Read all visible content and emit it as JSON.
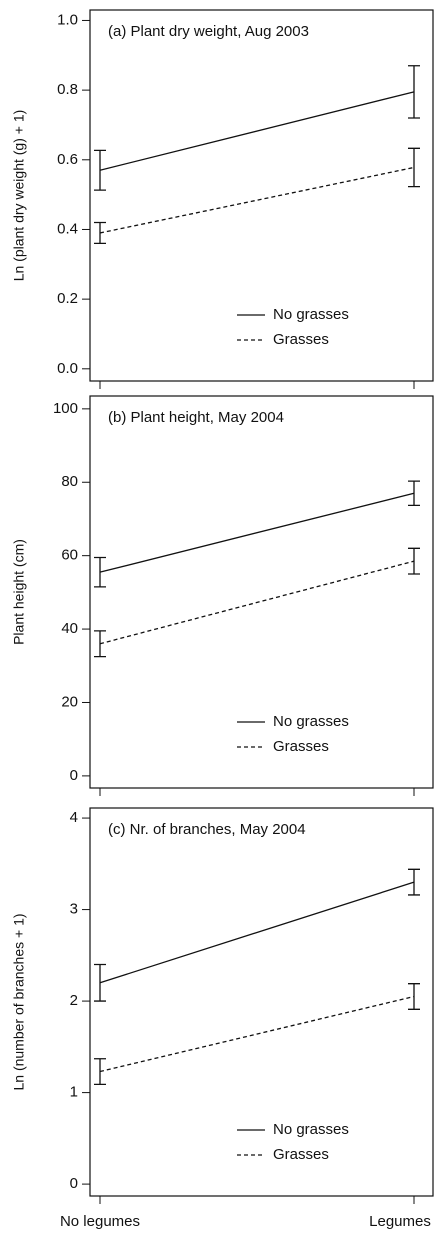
{
  "chart_data": [
    {
      "type": "line",
      "title": "(a) Plant dry weight, Aug 2003",
      "ylabel": "Ln (plant dry weight (g) + 1)",
      "ylim": [
        -0.035,
        1.03
      ],
      "yticks": [
        {
          "value": 0,
          "label": "0.0"
        },
        0.2,
        0.4,
        0.6,
        0.8,
        {
          "value": 1,
          "label": "1.0"
        }
      ],
      "series": [
        {
          "name": "No grasses",
          "color": "#111111",
          "dash": "none",
          "values": [
            0.57,
            0.795
          ],
          "errors": [
            0.057,
            0.075
          ]
        },
        {
          "name": "Grasses",
          "color": "#111111",
          "dash": "4 3",
          "values": [
            0.39,
            0.578
          ],
          "errors": [
            0.03,
            0.055
          ]
        }
      ]
    },
    {
      "type": "line",
      "title": "(b) Plant height, May 2004",
      "ylabel": "Plant height (cm)",
      "ylim": [
        -3.3,
        103.5
      ],
      "yticks": [
        0,
        20,
        40,
        60,
        80,
        100
      ],
      "series": [
        {
          "name": "No grasses",
          "color": "#111111",
          "dash": "none",
          "values": [
            55.5,
            77
          ],
          "errors": [
            4,
            3.3
          ]
        },
        {
          "name": "Grasses",
          "color": "#111111",
          "dash": "4 3",
          "values": [
            36,
            58.5
          ],
          "errors": [
            3.5,
            3.5
          ]
        }
      ]
    },
    {
      "type": "line",
      "title": "(c) Nr. of branches, May 2004",
      "ylabel": "Ln (number of branches + 1)",
      "ylim": [
        -0.13,
        4.11
      ],
      "yticks": [
        0,
        1,
        2,
        3,
        4
      ],
      "categories": [
        "No legumes",
        "Legumes"
      ],
      "series": [
        {
          "name": "No grasses",
          "color": "#111111",
          "dash": "none",
          "values": [
            2.2,
            3.3
          ],
          "errors": [
            0.2,
            0.14
          ]
        },
        {
          "name": "Grasses",
          "color": "#111111",
          "dash": "4 3",
          "values": [
            1.23,
            2.05
          ],
          "errors": [
            0.14,
            0.14
          ]
        }
      ]
    }
  ]
}
